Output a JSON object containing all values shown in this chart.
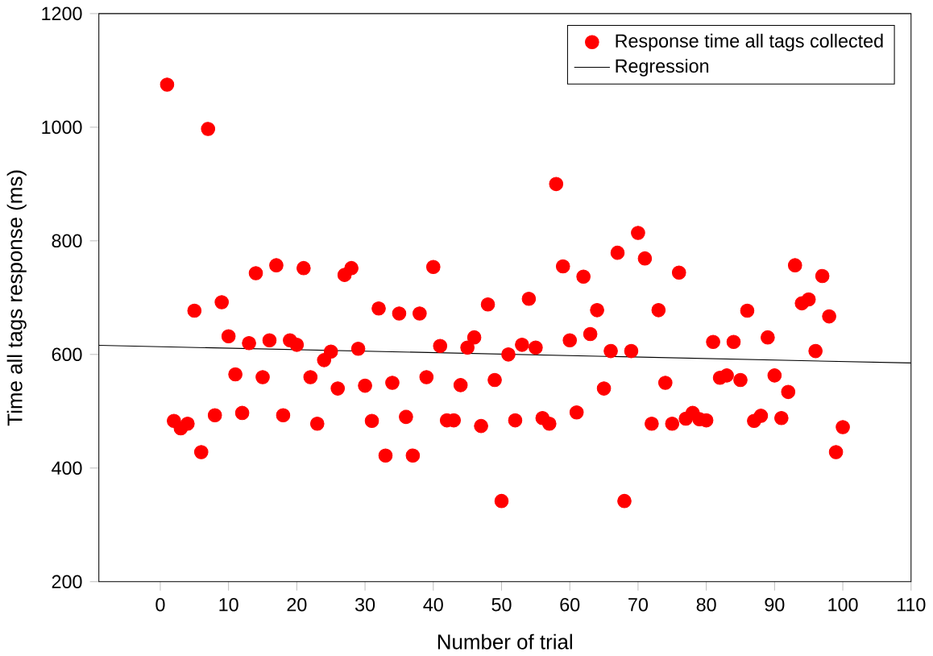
{
  "chart_data": {
    "type": "scatter",
    "xlabel": "Number of trial",
    "ylabel": "Time all tags response (ms)",
    "xlim": [
      -9,
      110
    ],
    "xticks": [
      0,
      10,
      20,
      30,
      40,
      50,
      60,
      70,
      80,
      90,
      100,
      110
    ],
    "ylim": [
      200,
      1200
    ],
    "yticks": [
      200,
      400,
      600,
      800,
      1000,
      1200
    ],
    "grid": false,
    "legend": "top right",
    "marker": "circle",
    "x": [
      1,
      2,
      3,
      4,
      5,
      6,
      7,
      8,
      9,
      10,
      11,
      12,
      13,
      14,
      15,
      16,
      17,
      18,
      19,
      20,
      21,
      22,
      23,
      24,
      25,
      26,
      27,
      28,
      29,
      30,
      31,
      32,
      33,
      34,
      35,
      36,
      37,
      38,
      39,
      40,
      41,
      42,
      43,
      44,
      45,
      46,
      47,
      48,
      49,
      50,
      51,
      52,
      53,
      54,
      55,
      56,
      57,
      58,
      59,
      60,
      61,
      62,
      63,
      64,
      65,
      66,
      67,
      68,
      69,
      70,
      71,
      72,
      73,
      74,
      75,
      76,
      77,
      78,
      79,
      80,
      81,
      82,
      83,
      84,
      85,
      86,
      87,
      88,
      89,
      90,
      91,
      92,
      93,
      94,
      95,
      96,
      97,
      98,
      99,
      100
    ],
    "series": [
      {
        "name": "Response time all tags collected",
        "color": "#ff0000",
        "values": [
          1075,
          483,
          470,
          478,
          677,
          428,
          997,
          493,
          692,
          632,
          565,
          497,
          620,
          743,
          560,
          625,
          757,
          493,
          625,
          617,
          752,
          560,
          478,
          590,
          605,
          540,
          740,
          752,
          610,
          545,
          483,
          681,
          422,
          550,
          672,
          490,
          422,
          672,
          560,
          754,
          615,
          484,
          484,
          546,
          612,
          630,
          474,
          688,
          555,
          342,
          600,
          484,
          617,
          698,
          612,
          488,
          478,
          900,
          755,
          625,
          498,
          737,
          636,
          678,
          540,
          606,
          779,
          342,
          606,
          814,
          769,
          478,
          678,
          550,
          478,
          744,
          487,
          497,
          486,
          484,
          622,
          559,
          563,
          622,
          555,
          677,
          483,
          492,
          630,
          563,
          488,
          534,
          757,
          690,
          697,
          606,
          738,
          667,
          428,
          472
        ]
      },
      {
        "name": "Regression",
        "type": "line",
        "color": "#000000",
        "marker": "none",
        "x": [
          -9,
          110
        ],
        "values": [
          616,
          585
        ]
      }
    ]
  }
}
